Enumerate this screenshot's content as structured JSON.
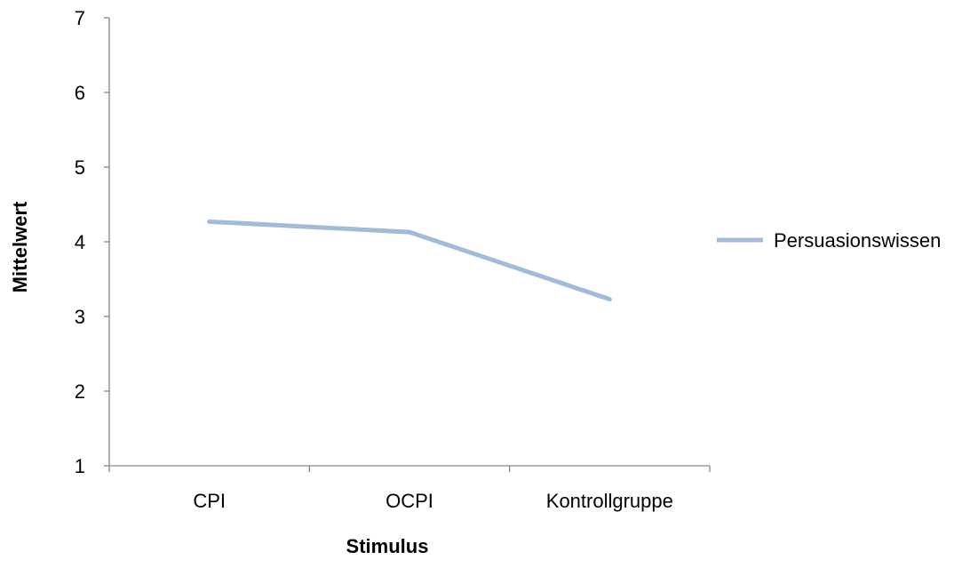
{
  "chart_data": {
    "type": "line",
    "categories": [
      "CPI",
      "OCPI",
      "Kontrollgruppe"
    ],
    "series": [
      {
        "name": "Persuasionswissen",
        "values": [
          4.27,
          4.13,
          3.23
        ],
        "color": "#a3bad9"
      }
    ],
    "xlabel": "Stimulus",
    "ylabel": "Mittelwert",
    "ylim": [
      1,
      7
    ],
    "yticks": [
      1,
      2,
      3,
      4,
      5,
      6,
      7
    ],
    "grid": false,
    "legend_position": "right"
  }
}
